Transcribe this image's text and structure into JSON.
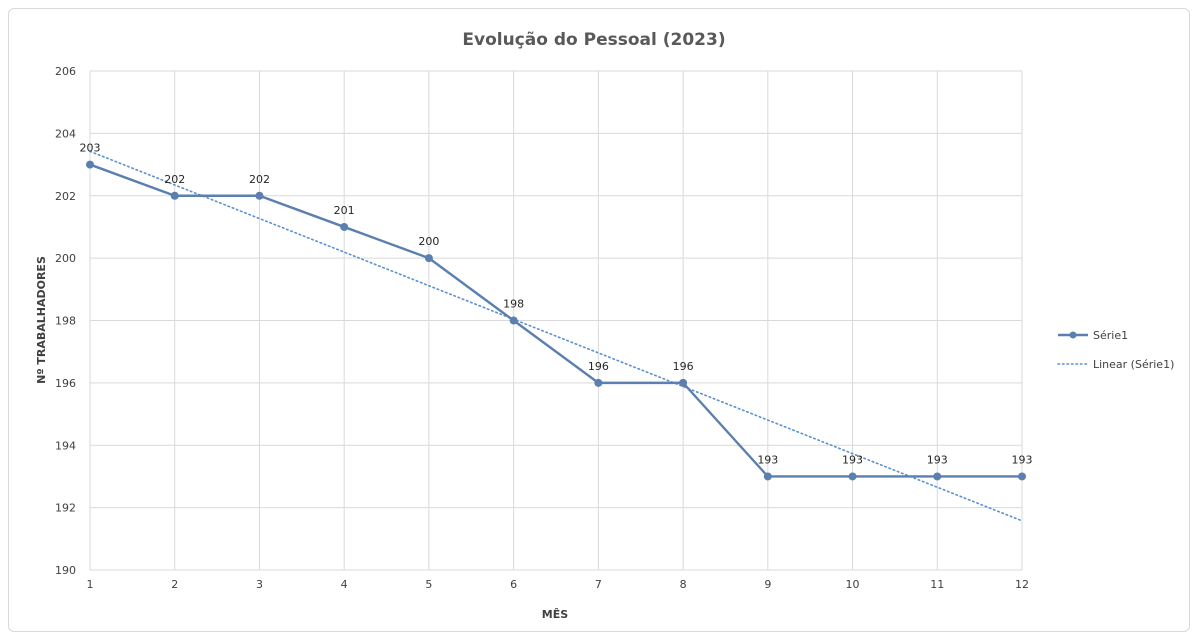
{
  "chart_data": {
    "type": "line",
    "title": "Evolução do Pessoal (2023)",
    "xlabel": "MÊS",
    "ylabel": "Nº TRABALHADORES",
    "x": [
      1,
      2,
      3,
      4,
      5,
      6,
      7,
      8,
      9,
      10,
      11,
      12
    ],
    "ylim": [
      190,
      206
    ],
    "yticks": [
      190,
      192,
      194,
      196,
      198,
      200,
      202,
      204,
      206
    ],
    "grid": true,
    "legend_position": "right",
    "series": [
      {
        "name": "Série1",
        "values": [
          203,
          202,
          202,
          201,
          200,
          198,
          196,
          196,
          193,
          193,
          193,
          193
        ],
        "color": "#5b7fae",
        "style": "solid-with-markers"
      }
    ],
    "trendline": {
      "name": "Linear (Série1)",
      "type": "linear",
      "of_series": "Série1",
      "color": "#5b8fcf",
      "style": "dotted"
    }
  }
}
